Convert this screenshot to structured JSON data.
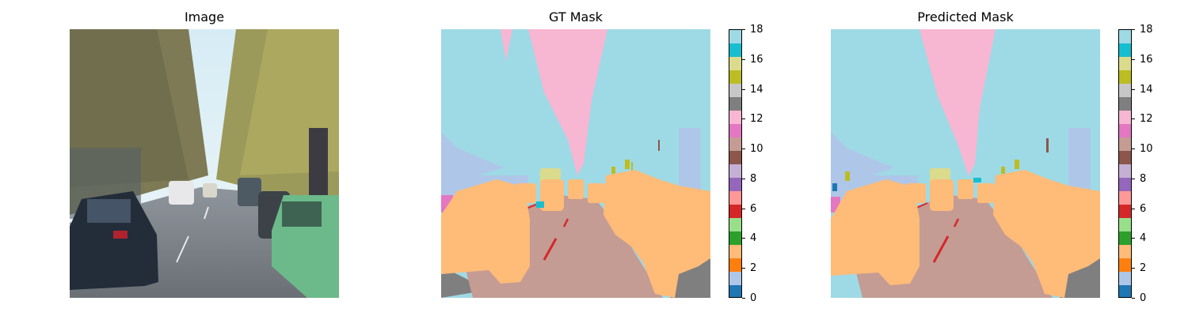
{
  "panels": {
    "image_title": "Image",
    "gt_title": "GT Mask",
    "pred_title": "Predicted Mask"
  },
  "colorbar": {
    "ticks": [
      "0",
      "2",
      "4",
      "6",
      "8",
      "10",
      "12",
      "14",
      "16",
      "18"
    ],
    "colors": [
      "#1f77b4",
      "#aec7e8",
      "#ff7f0e",
      "#ffbb78",
      "#2ca02c",
      "#98df8a",
      "#d62728",
      "#ff9896",
      "#9467bd",
      "#c5b0d5",
      "#8c564b",
      "#c49c94",
      "#e377c2",
      "#f7b6d2",
      "#7f7f7f",
      "#c7c7c7",
      "#bcbd22",
      "#dbdb8d",
      "#17becf",
      "#9edae5"
    ]
  },
  "palette": {
    "sky": "#9edae5",
    "vegetation": "#f7b6d2",
    "road": "#c49c94",
    "car": "#ffbb78",
    "building": "#aec7e8",
    "sidewalk": "#7f7f7f",
    "lane": "#d62728",
    "sign": "#bcbd22",
    "bus": "#dbdb8d",
    "rider": "#e377c2"
  }
}
